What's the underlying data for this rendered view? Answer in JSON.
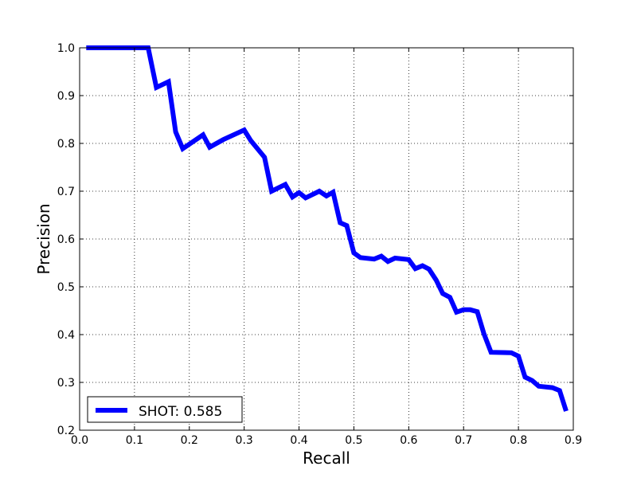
{
  "chart_data": {
    "type": "line",
    "title": "",
    "xlabel": "Recall",
    "ylabel": "Precision",
    "xlim": [
      0.0,
      0.9
    ],
    "ylim": [
      0.2,
      1.0
    ],
    "xticks": [
      "0.0",
      "0.1",
      "0.2",
      "0.3",
      "0.4",
      "0.5",
      "0.6",
      "0.7",
      "0.8",
      "0.9"
    ],
    "yticks": [
      "0.2",
      "0.3",
      "0.4",
      "0.5",
      "0.6",
      "0.7",
      "0.8",
      "0.9",
      "1.0"
    ],
    "grid": true,
    "legend_position": "lower-left",
    "series": [
      {
        "name": "SHOT: 0.585",
        "color": "#0000ff",
        "x": [
          0.012,
          0.125,
          0.14,
          0.162,
          0.175,
          0.188,
          0.225,
          0.237,
          0.262,
          0.3,
          0.312,
          0.337,
          0.35,
          0.375,
          0.388,
          0.4,
          0.412,
          0.437,
          0.45,
          0.462,
          0.475,
          0.487,
          0.5,
          0.512,
          0.537,
          0.55,
          0.562,
          0.575,
          0.6,
          0.612,
          0.625,
          0.637,
          0.65,
          0.662,
          0.675,
          0.687,
          0.7,
          0.712,
          0.725,
          0.737,
          0.75,
          0.787,
          0.8,
          0.812,
          0.825,
          0.837,
          0.862,
          0.875,
          0.887
        ],
        "y": [
          1.0,
          1.0,
          0.917,
          0.929,
          0.824,
          0.789,
          0.818,
          0.792,
          0.808,
          0.828,
          0.806,
          0.771,
          0.7,
          0.714,
          0.688,
          0.697,
          0.686,
          0.7,
          0.69,
          0.698,
          0.634,
          0.628,
          0.571,
          0.561,
          0.558,
          0.564,
          0.553,
          0.56,
          0.557,
          0.538,
          0.544,
          0.537,
          0.514,
          0.486,
          0.478,
          0.447,
          0.452,
          0.452,
          0.448,
          0.402,
          0.363,
          0.362,
          0.355,
          0.311,
          0.304,
          0.292,
          0.289,
          0.283,
          0.24
        ]
      }
    ]
  }
}
